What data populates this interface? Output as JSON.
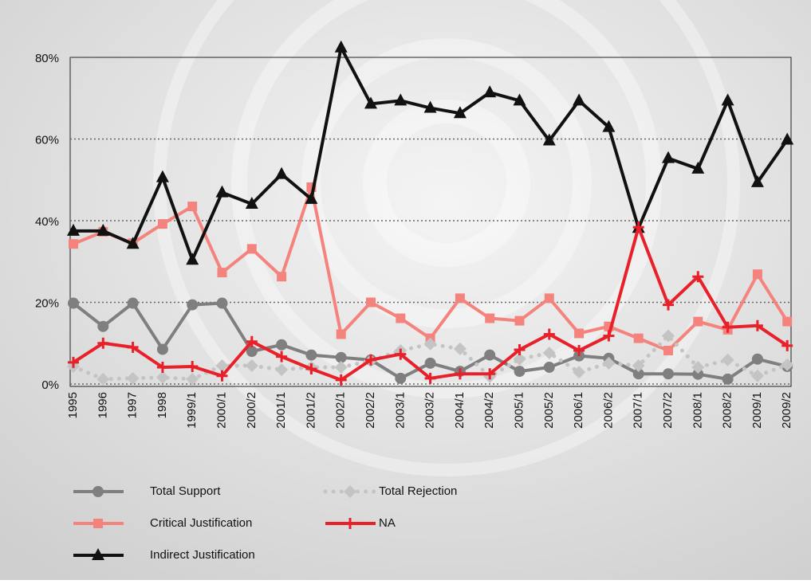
{
  "chart_data": {
    "type": "line",
    "categories": [
      "1995",
      "1996",
      "1997",
      "1998",
      "1999/1",
      "2000/1",
      "2000/2",
      "2001/1",
      "2001/2",
      "2002/1",
      "2002/2",
      "2003/1",
      "2003/2",
      "2004/1",
      "2004/2",
      "2005/1",
      "2005/2",
      "2006/1",
      "2006/2",
      "2007/1",
      "2007/2",
      "2008/1",
      "2008/2",
      "2009/1",
      "2009/2"
    ],
    "series": [
      {
        "name": "Total Support",
        "color": "#7f7f7f",
        "marker": "circle",
        "line_style": "solid",
        "values": [
          19.8,
          14.1,
          19.8,
          8.5,
          19.4,
          19.8,
          8,
          9.6,
          7.1,
          6.5,
          5.9,
          1.4,
          5.1,
          3.1,
          7.1,
          3.1,
          4.1,
          6.9,
          6.3,
          2.5,
          2.5,
          2.4,
          1.2,
          6.1,
          4.3
        ]
      },
      {
        "name": "Critical Justification",
        "color": "#f4837d",
        "marker": "square",
        "line_style": "solid",
        "values": [
          34.3,
          37.3,
          34.5,
          39.2,
          43.5,
          27.3,
          33.1,
          26.3,
          48.2,
          12.2,
          20,
          16.1,
          11.2,
          21,
          16.1,
          15.5,
          21,
          12.4,
          14.1,
          11.2,
          8.2,
          15.3,
          13.3,
          26.9,
          15.3
        ]
      },
      {
        "name": "Indirect Justification",
        "color": "#111111",
        "marker": "triangle",
        "line_style": "solid",
        "values": [
          37.5,
          37.5,
          34.3,
          50.6,
          30.4,
          46.9,
          44.1,
          51.4,
          45.3,
          82.4,
          68.6,
          69.4,
          67.6,
          66.3,
          71.4,
          69.4,
          59.6,
          69.4,
          62.9,
          38.2,
          55.3,
          52.7,
          69.4,
          49.4,
          59.8
        ]
      },
      {
        "name": "Total Rejection",
        "color": "#c4c4c4",
        "marker": "diamond",
        "line_style": "dotted",
        "values": [
          4.3,
          1.2,
          1.4,
          1.6,
          1.2,
          4.5,
          4.5,
          3.5,
          4.1,
          4.1,
          5.7,
          8.2,
          9.8,
          8.6,
          1.8,
          6.1,
          7.6,
          2.9,
          5.1,
          4.5,
          11.8,
          4.1,
          5.9,
          2,
          4.7
        ]
      },
      {
        "name": "NA",
        "color": "#e8202a",
        "marker": "plus",
        "line_style": "solid",
        "values": [
          5.3,
          10,
          9,
          4.1,
          4.3,
          2,
          10.4,
          6.7,
          3.7,
          1,
          5.9,
          7.3,
          1.4,
          2.5,
          2.5,
          8.4,
          12.2,
          8.2,
          11.8,
          38.4,
          19.4,
          26.3,
          13.9,
          14.3,
          9.4
        ]
      }
    ],
    "ylim": [
      0,
      80
    ],
    "yticks": [
      {
        "value": 0,
        "label": "0%"
      },
      {
        "value": 20,
        "label": "20%"
      },
      {
        "value": 40,
        "label": "40%"
      },
      {
        "value": 60,
        "label": "60%"
      },
      {
        "value": 80,
        "label": "80%"
      }
    ],
    "grid": true
  }
}
